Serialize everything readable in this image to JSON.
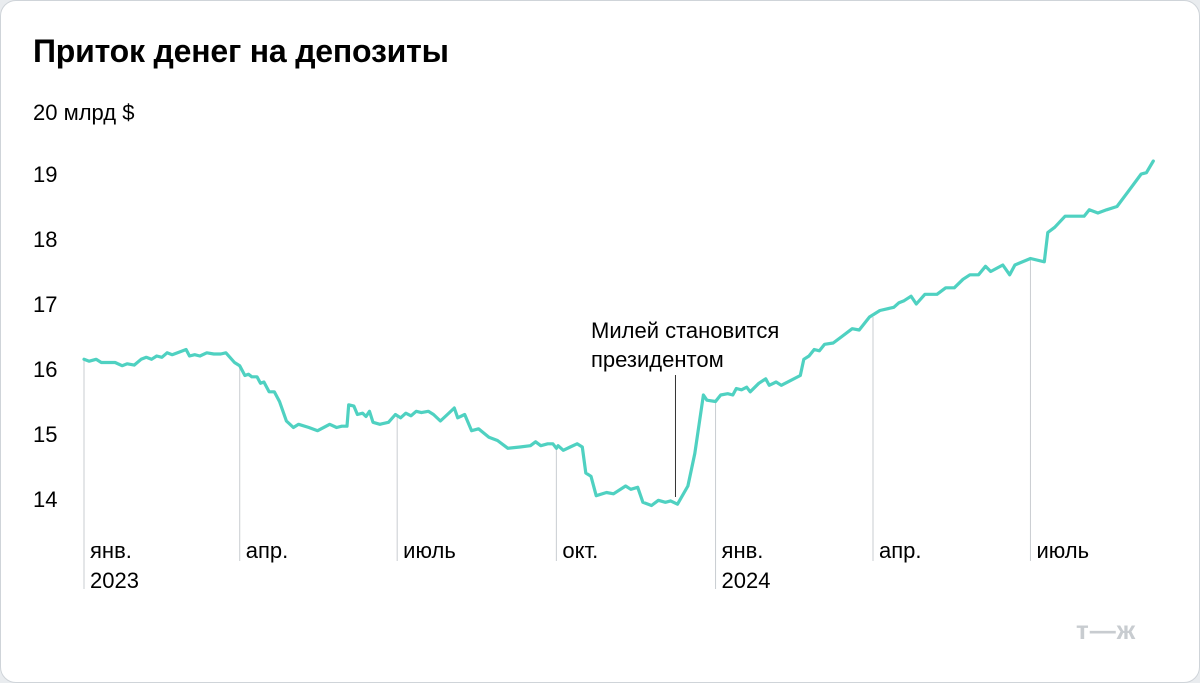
{
  "chart_data": {
    "type": "line",
    "title": "Приток денег на депозиты",
    "unit_label": "20 млрд $",
    "y_ticks": [
      "14",
      "15",
      "16",
      "17",
      "18",
      "19"
    ],
    "ylim": [
      13.5,
      20
    ],
    "x_labels": [
      {
        "date": "2023-01-01",
        "line1": "янв.",
        "line2": "2023"
      },
      {
        "date": "2023-04-01",
        "line1": "апр.",
        "line2": ""
      },
      {
        "date": "2023-07-01",
        "line1": "июль",
        "line2": ""
      },
      {
        "date": "2023-10-01",
        "line1": "окт.",
        "line2": ""
      },
      {
        "date": "2024-01-01",
        "line1": "янв.",
        "line2": "2024"
      },
      {
        "date": "2024-04-01",
        "line1": "апр.",
        "line2": ""
      },
      {
        "date": "2024-07-01",
        "line1": "июль",
        "line2": ""
      }
    ],
    "xlim": [
      "2023-01-01",
      "2024-08-31"
    ],
    "grid": "vertical lines at month labels",
    "line_color": "#4fd1c1",
    "annotation": {
      "text_lines": [
        "Милей становится",
        "президентом"
      ],
      "date": "2023-12-10",
      "value": 13.95
    },
    "series": [
      {
        "points": [
          [
            "2023-01-01",
            16.15
          ],
          [
            "2023-01-04",
            16.12
          ],
          [
            "2023-01-08",
            16.15
          ],
          [
            "2023-01-11",
            16.1
          ],
          [
            "2023-01-15",
            16.1
          ],
          [
            "2023-01-19",
            16.1
          ],
          [
            "2023-01-23",
            16.05
          ],
          [
            "2023-01-26",
            16.08
          ],
          [
            "2023-01-30",
            16.06
          ],
          [
            "2023-02-03",
            16.15
          ],
          [
            "2023-02-06",
            16.18
          ],
          [
            "2023-02-09",
            16.15
          ],
          [
            "2023-02-12",
            16.2
          ],
          [
            "2023-02-15",
            16.18
          ],
          [
            "2023-02-18",
            16.25
          ],
          [
            "2023-02-21",
            16.22
          ],
          [
            "2023-02-25",
            16.26
          ],
          [
            "2023-03-01",
            16.3
          ],
          [
            "2023-03-03",
            16.2
          ],
          [
            "2023-03-06",
            16.22
          ],
          [
            "2023-03-09",
            16.2
          ],
          [
            "2023-03-13",
            16.25
          ],
          [
            "2023-03-17",
            16.23
          ],
          [
            "2023-03-21",
            16.23
          ],
          [
            "2023-03-24",
            16.25
          ],
          [
            "2023-03-29",
            16.1
          ],
          [
            "2023-04-01",
            16.05
          ],
          [
            "2023-04-04",
            15.9
          ],
          [
            "2023-04-06",
            15.92
          ],
          [
            "2023-04-08",
            15.88
          ],
          [
            "2023-04-11",
            15.88
          ],
          [
            "2023-04-13",
            15.78
          ],
          [
            "2023-04-15",
            15.8
          ],
          [
            "2023-04-18",
            15.65
          ],
          [
            "2023-04-21",
            15.65
          ],
          [
            "2023-04-24",
            15.5
          ],
          [
            "2023-04-28",
            15.2
          ],
          [
            "2023-05-02",
            15.1
          ],
          [
            "2023-05-05",
            15.15
          ],
          [
            "2023-05-11",
            15.1
          ],
          [
            "2023-05-16",
            15.05
          ],
          [
            "2023-05-23",
            15.15
          ],
          [
            "2023-05-27",
            15.1
          ],
          [
            "2023-05-30",
            15.12
          ],
          [
            "2023-06-02",
            15.12
          ],
          [
            "2023-06-03",
            15.45
          ],
          [
            "2023-06-06",
            15.43
          ],
          [
            "2023-06-08",
            15.3
          ],
          [
            "2023-06-11",
            15.32
          ],
          [
            "2023-06-13",
            15.27
          ],
          [
            "2023-06-15",
            15.35
          ],
          [
            "2023-06-17",
            15.18
          ],
          [
            "2023-06-21",
            15.15
          ],
          [
            "2023-06-26",
            15.18
          ],
          [
            "2023-06-30",
            15.3
          ],
          [
            "2023-07-03",
            15.25
          ],
          [
            "2023-07-06",
            15.32
          ],
          [
            "2023-07-09",
            15.28
          ],
          [
            "2023-07-12",
            15.35
          ],
          [
            "2023-07-15",
            15.33
          ],
          [
            "2023-07-19",
            15.35
          ],
          [
            "2023-07-22",
            15.3
          ],
          [
            "2023-07-26",
            15.2
          ],
          [
            "2023-07-30",
            15.3
          ],
          [
            "2023-08-03",
            15.4
          ],
          [
            "2023-08-05",
            15.25
          ],
          [
            "2023-08-09",
            15.3
          ],
          [
            "2023-08-13",
            15.05
          ],
          [
            "2023-08-17",
            15.08
          ],
          [
            "2023-08-23",
            14.95
          ],
          [
            "2023-08-28",
            14.9
          ],
          [
            "2023-09-03",
            14.78
          ],
          [
            "2023-09-10",
            14.8
          ],
          [
            "2023-09-16",
            14.82
          ],
          [
            "2023-09-19",
            14.88
          ],
          [
            "2023-09-22",
            14.82
          ],
          [
            "2023-09-26",
            14.85
          ],
          [
            "2023-09-29",
            14.85
          ],
          [
            "2023-10-01",
            14.78
          ],
          [
            "2023-10-02",
            14.82
          ],
          [
            "2023-10-05",
            14.75
          ],
          [
            "2023-10-09",
            14.8
          ],
          [
            "2023-10-13",
            14.85
          ],
          [
            "2023-10-16",
            14.8
          ],
          [
            "2023-10-18",
            14.4
          ],
          [
            "2023-10-21",
            14.35
          ],
          [
            "2023-10-24",
            14.05
          ],
          [
            "2023-10-30",
            14.1
          ],
          [
            "2023-11-03",
            14.08
          ],
          [
            "2023-11-10",
            14.2
          ],
          [
            "2023-11-13",
            14.15
          ],
          [
            "2023-11-17",
            14.18
          ],
          [
            "2023-11-20",
            13.95
          ],
          [
            "2023-11-25",
            13.9
          ],
          [
            "2023-11-29",
            13.98
          ],
          [
            "2023-12-03",
            13.95
          ],
          [
            "2023-12-06",
            13.97
          ],
          [
            "2023-12-10",
            13.92
          ],
          [
            "2023-12-16",
            14.2
          ],
          [
            "2023-12-20",
            14.7
          ],
          [
            "2023-12-25",
            15.6
          ],
          [
            "2023-12-27",
            15.52
          ],
          [
            "2024-01-01",
            15.5
          ],
          [
            "2024-01-04",
            15.6
          ],
          [
            "2024-01-08",
            15.62
          ],
          [
            "2024-01-11",
            15.6
          ],
          [
            "2024-01-13",
            15.7
          ],
          [
            "2024-01-16",
            15.68
          ],
          [
            "2024-01-19",
            15.72
          ],
          [
            "2024-01-21",
            15.65
          ],
          [
            "2024-01-26",
            15.78
          ],
          [
            "2024-01-30",
            15.85
          ],
          [
            "2024-02-01",
            15.75
          ],
          [
            "2024-02-05",
            15.8
          ],
          [
            "2024-02-08",
            15.75
          ],
          [
            "2024-02-19",
            15.9
          ],
          [
            "2024-02-21",
            16.15
          ],
          [
            "2024-02-24",
            16.2
          ],
          [
            "2024-02-27",
            16.3
          ],
          [
            "2024-03-01",
            16.28
          ],
          [
            "2024-03-04",
            16.38
          ],
          [
            "2024-03-09",
            16.4
          ],
          [
            "2024-03-14",
            16.5
          ],
          [
            "2024-03-20",
            16.62
          ],
          [
            "2024-03-24",
            16.6
          ],
          [
            "2024-03-30",
            16.8
          ],
          [
            "2024-04-05",
            16.9
          ],
          [
            "2024-04-13",
            16.95
          ],
          [
            "2024-04-16",
            17.02
          ],
          [
            "2024-04-19",
            17.05
          ],
          [
            "2024-04-23",
            17.12
          ],
          [
            "2024-04-26",
            17.0
          ],
          [
            "2024-05-01",
            17.15
          ],
          [
            "2024-05-08",
            17.15
          ],
          [
            "2024-05-13",
            17.25
          ],
          [
            "2024-05-18",
            17.25
          ],
          [
            "2024-05-23",
            17.38
          ],
          [
            "2024-05-27",
            17.45
          ],
          [
            "2024-06-01",
            17.45
          ],
          [
            "2024-06-05",
            17.58
          ],
          [
            "2024-06-08",
            17.5
          ],
          [
            "2024-06-15",
            17.6
          ],
          [
            "2024-06-19",
            17.45
          ],
          [
            "2024-06-22",
            17.6
          ],
          [
            "2024-07-01",
            17.7
          ],
          [
            "2024-07-09",
            17.65
          ],
          [
            "2024-07-11",
            18.1
          ],
          [
            "2024-07-15",
            18.18
          ],
          [
            "2024-07-21",
            18.35
          ],
          [
            "2024-07-28",
            18.35
          ],
          [
            "2024-08-01",
            18.35
          ],
          [
            "2024-08-04",
            18.45
          ],
          [
            "2024-08-09",
            18.4
          ],
          [
            "2024-08-14",
            18.45
          ],
          [
            "2024-08-20",
            18.5
          ],
          [
            "2024-08-27",
            18.75
          ],
          [
            "2024-09-03",
            19.0
          ],
          [
            "2024-09-06",
            19.02
          ],
          [
            "2024-09-10",
            19.2
          ]
        ]
      }
    ]
  },
  "brand": {
    "logo_text": "т—ж"
  }
}
